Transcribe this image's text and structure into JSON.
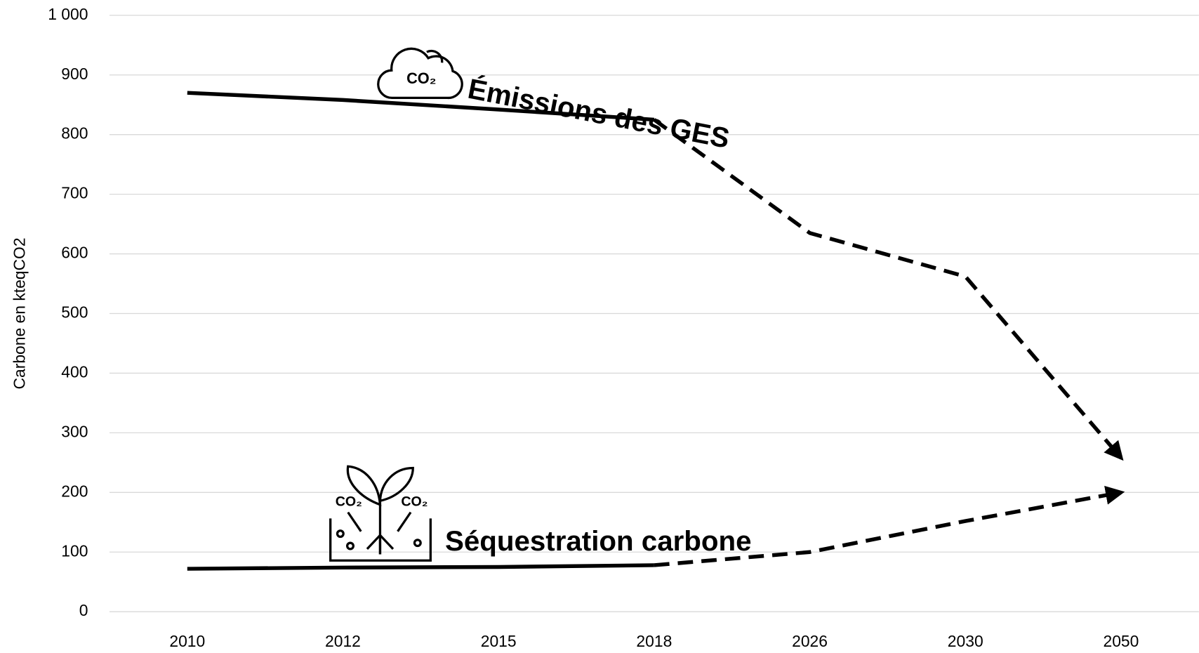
{
  "chart_data": {
    "type": "line",
    "y_axis_label": "Carbone en kteqCO2",
    "categories": [
      "2010",
      "2012",
      "2015",
      "2018",
      "2026",
      "2030",
      "2050"
    ],
    "series": [
      {
        "name": "Émissions des GES",
        "color": "#000000",
        "values": [
          870,
          858,
          842,
          825,
          635,
          562,
          258
        ],
        "dashed_from": "2018",
        "icon_text": "CO₂"
      },
      {
        "name": "Séquestration carbone",
        "color": "#000000",
        "values": [
          72,
          74,
          75,
          78,
          100,
          152,
          200
        ],
        "dashed_from": "2018",
        "icon_text": "CO₂"
      }
    ],
    "ylim": [
      0,
      1000
    ],
    "yticks": [
      0,
      100,
      200,
      300,
      400,
      500,
      600,
      700,
      800,
      900,
      {
        "value": 1000,
        "label": "1 000"
      }
    ],
    "grid": true
  }
}
